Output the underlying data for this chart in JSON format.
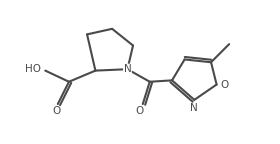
{
  "bg_color": "#ffffff",
  "line_color": "#4a4a4a",
  "line_width": 1.5,
  "figsize": [
    2.8,
    1.44
  ],
  "dpi": 100,
  "xlim": [
    0,
    10
  ],
  "ylim": [
    0,
    5
  ]
}
